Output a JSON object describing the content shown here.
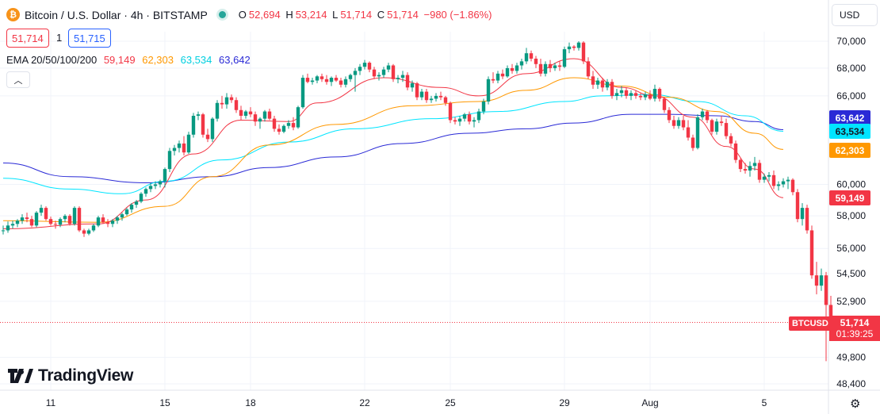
{
  "header": {
    "title": "Bitcoin / U.S. Dollar · 4h · BITSTAMP",
    "ohlc": [
      {
        "k": "O",
        "v": "52,694"
      },
      {
        "k": "H",
        "v": "53,214"
      },
      {
        "k": "L",
        "v": "51,714"
      },
      {
        "k": "C",
        "v": "51,714"
      }
    ],
    "change": "−980 (−1.86%)",
    "sell_price": "51,714",
    "quantity": "1",
    "buy_price": "51,715",
    "currency": "USD",
    "brand": "TradingView",
    "coin_icon": "bitcoin-icon"
  },
  "indicator": {
    "label": "EMA 20/50/100/200",
    "values": [
      {
        "name": "EMA 20",
        "value": "59,149",
        "color": "#f23645"
      },
      {
        "name": "EMA 50",
        "value": "62,303",
        "color": "#ff9800"
      },
      {
        "name": "EMA 100",
        "value": "63,534",
        "color": "#00e5ff"
      },
      {
        "name": "EMA 200",
        "value": "63,642",
        "color": "#2a2ad6"
      }
    ]
  },
  "last_price": {
    "symbol": "BTCUSD",
    "price": "51,714",
    "countdown": "01:39:25"
  },
  "chart_data": {
    "type": "candlestick",
    "symbol": "BTCUSD",
    "interval": "4h",
    "y_axis": {
      "ticks": [
        48400,
        49800,
        51714,
        52900,
        54500,
        56000,
        58000,
        60000,
        62000,
        64000,
        66000,
        68000,
        70000
      ],
      "tick_labels": [
        "48,400",
        "49,800",
        "",
        "52,900",
        "54,500",
        "56,000",
        "58,000",
        "60,000",
        "",
        "",
        "66,000",
        "68,000",
        "70,000"
      ],
      "scale": "log"
    },
    "x_axis": {
      "ticks": [
        {
          "label": "11",
          "i": 10
        },
        {
          "label": "15",
          "i": 34
        },
        {
          "label": "18",
          "i": 52
        },
        {
          "label": "22",
          "i": 76
        },
        {
          "label": "25",
          "i": 94
        },
        {
          "label": "29",
          "i": 118
        },
        {
          "label": "Aug",
          "i": 136
        },
        {
          "label": "5",
          "i": 160
        }
      ]
    },
    "candles": [
      [
        57100,
        57400,
        56850,
        57100
      ],
      [
        57100,
        57650,
        56950,
        57400
      ],
      [
        57400,
        57700,
        57200,
        57500
      ],
      [
        57500,
        57800,
        57300,
        57700
      ],
      [
        57700,
        58100,
        57500,
        57900
      ],
      [
        57900,
        58200,
        57600,
        57800
      ],
      [
        57800,
        58000,
        57300,
        57400
      ],
      [
        57400,
        58300,
        57300,
        58200
      ],
      [
        58200,
        58700,
        58000,
        58500
      ],
      [
        58500,
        58600,
        57700,
        57800
      ],
      [
        57800,
        57950,
        57400,
        57500
      ],
      [
        57500,
        57700,
        57200,
        57450
      ],
      [
        57450,
        57900,
        57300,
        57800
      ],
      [
        57800,
        58100,
        57600,
        58000
      ],
      [
        58000,
        58100,
        57400,
        57500
      ],
      [
        57500,
        58600,
        57400,
        58500
      ],
      [
        58500,
        58600,
        57000,
        57100
      ],
      [
        57100,
        57200,
        56700,
        56900
      ],
      [
        56900,
        57200,
        56800,
        57100
      ],
      [
        57100,
        57500,
        57000,
        57400
      ],
      [
        57400,
        58000,
        57300,
        57900
      ],
      [
        57900,
        58100,
        57500,
        57600
      ],
      [
        57600,
        57800,
        57300,
        57500
      ],
      [
        57500,
        57800,
        57300,
        57700
      ],
      [
        57700,
        58000,
        57500,
        57900
      ],
      [
        57900,
        58200,
        57700,
        58100
      ],
      [
        58100,
        58500,
        58000,
        58400
      ],
      [
        58400,
        58800,
        58200,
        58700
      ],
      [
        58700,
        59000,
        58500,
        58900
      ],
      [
        58900,
        59500,
        58800,
        59400
      ],
      [
        59400,
        59800,
        59200,
        59700
      ],
      [
        59700,
        60100,
        59500,
        59900
      ],
      [
        59900,
        60200,
        59700,
        60000
      ],
      [
        60000,
        60300,
        59800,
        60200
      ],
      [
        60200,
        61100,
        59800,
        61000
      ],
      [
        61000,
        62400,
        60800,
        62200
      ],
      [
        62200,
        62600,
        61900,
        62400
      ],
      [
        62400,
        62900,
        62100,
        62700
      ],
      [
        62700,
        63200,
        61900,
        62100
      ],
      [
        62100,
        63500,
        62000,
        63300
      ],
      [
        63300,
        64800,
        63100,
        64600
      ],
      [
        64600,
        64900,
        64300,
        64700
      ],
      [
        64700,
        64800,
        63100,
        63300
      ],
      [
        63300,
        63700,
        62800,
        63000
      ],
      [
        63000,
        64500,
        62800,
        64400
      ],
      [
        64400,
        65700,
        64200,
        65500
      ],
      [
        65500,
        66000,
        65100,
        65400
      ],
      [
        65400,
        66200,
        65100,
        65900
      ],
      [
        65900,
        66100,
        65500,
        65700
      ],
      [
        65700,
        65900,
        64800,
        65000
      ],
      [
        65000,
        65300,
        64300,
        64600
      ],
      [
        64600,
        65000,
        64400,
        64900
      ],
      [
        64900,
        65200,
        64500,
        64700
      ],
      [
        64700,
        64900,
        63900,
        64200
      ],
      [
        64200,
        64500,
        63700,
        64400
      ],
      [
        64400,
        65000,
        64200,
        64900
      ],
      [
        64900,
        65100,
        64300,
        64400
      ],
      [
        64400,
        64600,
        63500,
        63700
      ],
      [
        63700,
        64000,
        63300,
        63500
      ],
      [
        63500,
        64000,
        63400,
        63900
      ],
      [
        63900,
        64300,
        63700,
        64100
      ],
      [
        64100,
        64500,
        63600,
        63800
      ],
      [
        63800,
        65300,
        63700,
        65200
      ],
      [
        65200,
        67500,
        65100,
        67300
      ],
      [
        67300,
        67600,
        66900,
        67000
      ],
      [
        67000,
        67300,
        66800,
        67100
      ],
      [
        67100,
        67500,
        66900,
        67400
      ],
      [
        67400,
        67600,
        67000,
        67200
      ],
      [
        67200,
        67500,
        66800,
        67000
      ],
      [
        67000,
        67400,
        66700,
        67300
      ],
      [
        67300,
        67500,
        67000,
        67100
      ],
      [
        67100,
        67300,
        66600,
        66800
      ],
      [
        66800,
        67400,
        66600,
        67200
      ],
      [
        67200,
        67600,
        67000,
        67500
      ],
      [
        67500,
        68000,
        66300,
        67800
      ],
      [
        67800,
        68300,
        67500,
        68100
      ],
      [
        68100,
        68600,
        67900,
        68400
      ],
      [
        68400,
        68500,
        67700,
        67900
      ],
      [
        67900,
        68100,
        67200,
        67400
      ],
      [
        67400,
        67700,
        67100,
        67500
      ],
      [
        67500,
        68100,
        67300,
        67900
      ],
      [
        67900,
        68400,
        67700,
        68200
      ],
      [
        68200,
        68300,
        67000,
        67200
      ],
      [
        67200,
        67500,
        66900,
        67300
      ],
      [
        67300,
        67800,
        67000,
        67500
      ],
      [
        67500,
        67700,
        66400,
        66600
      ],
      [
        66600,
        67100,
        66300,
        66900
      ],
      [
        66900,
        67000,
        65700,
        65900
      ],
      [
        65900,
        66500,
        65700,
        66300
      ],
      [
        66300,
        66500,
        65500,
        65700
      ],
      [
        65700,
        66000,
        65500,
        65800
      ],
      [
        65800,
        66200,
        65600,
        66000
      ],
      [
        66000,
        66300,
        65700,
        65900
      ],
      [
        65900,
        66000,
        65300,
        65500
      ],
      [
        65500,
        65600,
        64100,
        64300
      ],
      [
        64300,
        64500,
        64000,
        64200
      ],
      [
        64200,
        64600,
        63900,
        64400
      ],
      [
        64400,
        64800,
        64200,
        64700
      ],
      [
        64700,
        64900,
        64000,
        64200
      ],
      [
        64200,
        64500,
        63800,
        64300
      ],
      [
        64300,
        65100,
        64100,
        64900
      ],
      [
        64900,
        65800,
        64700,
        65600
      ],
      [
        65600,
        67400,
        65400,
        67200
      ],
      [
        67200,
        67700,
        66900,
        67100
      ],
      [
        67100,
        67800,
        66900,
        67600
      ],
      [
        67600,
        67900,
        67200,
        67400
      ],
      [
        67400,
        68200,
        67300,
        68000
      ],
      [
        68000,
        68300,
        67600,
        67800
      ],
      [
        67800,
        68400,
        67600,
        68200
      ],
      [
        68200,
        68700,
        67900,
        68500
      ],
      [
        68500,
        69500,
        68300,
        69100
      ],
      [
        69100,
        69300,
        68500,
        68700
      ],
      [
        68700,
        68900,
        68000,
        68300
      ],
      [
        68300,
        68700,
        67400,
        67600
      ],
      [
        67600,
        68500,
        67400,
        68300
      ],
      [
        68300,
        68600,
        67700,
        68000
      ],
      [
        68000,
        68400,
        67800,
        68200
      ],
      [
        68200,
        68500,
        67800,
        68100
      ],
      [
        68100,
        69600,
        68000,
        69400
      ],
      [
        69400,
        69900,
        69100,
        69600
      ],
      [
        69600,
        69700,
        69300,
        69500
      ],
      [
        69500,
        70000,
        69300,
        69900
      ],
      [
        69900,
        70000,
        68300,
        68500
      ],
      [
        68500,
        68800,
        67200,
        67400
      ],
      [
        67400,
        67800,
        66500,
        66800
      ],
      [
        66800,
        67300,
        66500,
        67100
      ],
      [
        67100,
        67300,
        66300,
        66600
      ],
      [
        66600,
        67200,
        66400,
        67000
      ],
      [
        67000,
        67200,
        65800,
        66000
      ],
      [
        66000,
        66500,
        65700,
        66200
      ],
      [
        66200,
        66700,
        65900,
        66400
      ],
      [
        66400,
        66600,
        65800,
        66000
      ],
      [
        66000,
        66400,
        65700,
        66200
      ],
      [
        66200,
        66400,
        65800,
        66000
      ],
      [
        66000,
        66200,
        65700,
        65900
      ],
      [
        65900,
        66300,
        65700,
        66100
      ],
      [
        66100,
        66400,
        65700,
        65800
      ],
      [
        65800,
        66800,
        65600,
        66500
      ],
      [
        66500,
        66600,
        65600,
        65800
      ],
      [
        65800,
        65900,
        64800,
        65000
      ],
      [
        65000,
        65200,
        64100,
        64300
      ],
      [
        64300,
        64600,
        63700,
        63900
      ],
      [
        63900,
        64500,
        63700,
        64300
      ],
      [
        64300,
        64600,
        63600,
        63800
      ],
      [
        63800,
        64300,
        62900,
        63100
      ],
      [
        63100,
        63300,
        62200,
        62400
      ],
      [
        62400,
        64700,
        62300,
        64500
      ],
      [
        64500,
        65100,
        64300,
        64900
      ],
      [
        64900,
        65000,
        64100,
        64300
      ],
      [
        64300,
        64400,
        63300,
        63500
      ],
      [
        63500,
        64400,
        63300,
        64200
      ],
      [
        64200,
        64600,
        63900,
        64100
      ],
      [
        64100,
        64400,
        63000,
        63200
      ],
      [
        63200,
        63400,
        62500,
        62700
      ],
      [
        62700,
        62900,
        61400,
        61600
      ],
      [
        61600,
        61700,
        60800,
        61000
      ],
      [
        61000,
        61400,
        60700,
        60900
      ],
      [
        60900,
        61500,
        60500,
        61200
      ],
      [
        61200,
        61800,
        60900,
        61400
      ],
      [
        61400,
        61600,
        60100,
        60300
      ],
      [
        60300,
        60700,
        60100,
        60500
      ],
      [
        60500,
        60800,
        60200,
        60600
      ],
      [
        60600,
        60900,
        59700,
        59900
      ],
      [
        59900,
        60200,
        59600,
        60000
      ],
      [
        60000,
        60400,
        59800,
        60200
      ],
      [
        60200,
        60500,
        59700,
        60300
      ],
      [
        60300,
        60400,
        59300,
        59500
      ],
      [
        59500,
        59700,
        57600,
        57800
      ],
      [
        57800,
        58800,
        57400,
        58500
      ],
      [
        58500,
        58700,
        56900,
        57100
      ],
      [
        57100,
        57400,
        54200,
        54400
      ],
      [
        54400,
        55200,
        53300,
        53800
      ],
      [
        53800,
        54800,
        53500,
        54400
      ],
      [
        54400,
        54600,
        49600,
        52694
      ],
      [
        52694,
        53214,
        51714,
        51714
      ]
    ],
    "ema": {
      "ema20": {
        "color": "#f23645",
        "last": 59149,
        "points": [
          [
            0,
            57200
          ],
          [
            20,
            57500
          ],
          [
            30,
            59000
          ],
          [
            40,
            62000
          ],
          [
            50,
            64300
          ],
          [
            60,
            64200
          ],
          [
            66,
            65500
          ],
          [
            80,
            67300
          ],
          [
            92,
            66600
          ],
          [
            100,
            66000
          ],
          [
            110,
            67600
          ],
          [
            120,
            68700
          ],
          [
            130,
            66600
          ],
          [
            137,
            66000
          ],
          [
            145,
            64500
          ],
          [
            152,
            62500
          ],
          [
            158,
            61000
          ],
          [
            164,
            59149
          ]
        ]
      },
      "ema50": {
        "color": "#ff9800",
        "last": 62303,
        "points": [
          [
            0,
            57700
          ],
          [
            20,
            57600
          ],
          [
            34,
            58600
          ],
          [
            44,
            60500
          ],
          [
            56,
            62600
          ],
          [
            70,
            64000
          ],
          [
            86,
            65300
          ],
          [
            100,
            65600
          ],
          [
            110,
            66400
          ],
          [
            120,
            67300
          ],
          [
            130,
            66700
          ],
          [
            140,
            65900
          ],
          [
            150,
            64900
          ],
          [
            158,
            63400
          ],
          [
            164,
            62303
          ]
        ]
      },
      "ema100": {
        "color": "#00e5ff",
        "last": 63534,
        "points": [
          [
            0,
            60400
          ],
          [
            14,
            59700
          ],
          [
            25,
            59400
          ],
          [
            34,
            60200
          ],
          [
            46,
            61600
          ],
          [
            60,
            62800
          ],
          [
            74,
            63700
          ],
          [
            90,
            64400
          ],
          [
            104,
            64900
          ],
          [
            118,
            65600
          ],
          [
            126,
            66000
          ],
          [
            136,
            66100
          ],
          [
            146,
            65600
          ],
          [
            156,
            64600
          ],
          [
            164,
            63534
          ]
        ]
      },
      "ema200": {
        "color": "#2a2ad6",
        "last": 63642,
        "points": [
          [
            0,
            61400
          ],
          [
            14,
            60500
          ],
          [
            30,
            60100
          ],
          [
            44,
            60500
          ],
          [
            56,
            61100
          ],
          [
            70,
            61800
          ],
          [
            84,
            62700
          ],
          [
            98,
            63400
          ],
          [
            110,
            63700
          ],
          [
            120,
            64100
          ],
          [
            132,
            64700
          ],
          [
            140,
            64700
          ],
          [
            150,
            64600
          ],
          [
            158,
            64200
          ],
          [
            164,
            63642
          ]
        ]
      }
    }
  }
}
